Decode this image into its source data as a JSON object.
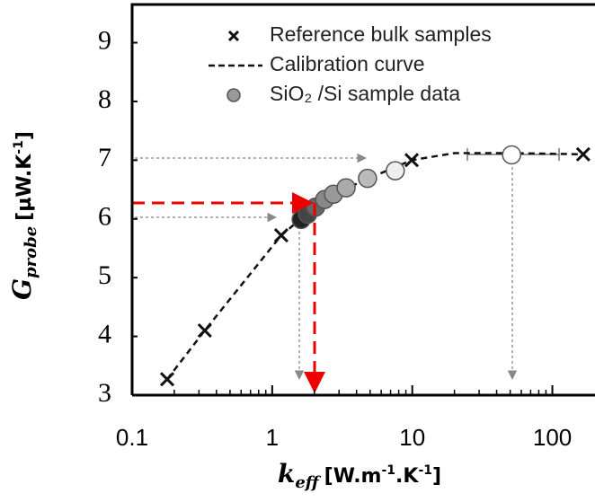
{
  "chart_data": {
    "type": "scatter",
    "xscale": "log",
    "xlim": [
      0.1,
      190
    ],
    "ylim": [
      3,
      9.65
    ],
    "xticks": [
      0.1,
      1,
      10,
      100
    ],
    "yticks": [
      3,
      4,
      5,
      6,
      7,
      8,
      9
    ],
    "y_label": {
      "symbol": "G",
      "subscript": "probe",
      "unit": "[µW.K",
      "unit_exponent": "-1",
      "unit_end": "]"
    },
    "x_label": {
      "symbol": "k",
      "subscript": "eff",
      "unit": "[W.m",
      "exp1": "-1",
      "mid": ".K",
      "exp2": "-1",
      "unit_end": "]"
    },
    "series": [
      {
        "name": "Reference bulk samples",
        "marker": "x",
        "color": "#111111",
        "x": [
          0.178,
          0.33,
          1.16,
          1.7,
          9.9,
          166
        ],
        "values": [
          3.27,
          4.1,
          5.72,
          6.05,
          7.0,
          7.1
        ]
      },
      {
        "name": "Calibration curve",
        "marker": "dashed-line",
        "color": "#111111",
        "x": [
          0.178,
          0.33,
          1.16,
          1.6,
          2.5,
          5,
          9.9,
          20,
          50,
          166
        ],
        "values": [
          3.27,
          4.1,
          5.72,
          6.0,
          6.38,
          6.7,
          7.0,
          7.12,
          7.12,
          7.1
        ]
      },
      {
        "name": "SiO₂ /Si sample data",
        "marker": "circle",
        "color": "#999999",
        "colors": [
          "#222222",
          "#444444",
          "#666666",
          "#888888",
          "#999999",
          "#aaaaaa",
          "#bbbbbb",
          "#eeeeee",
          "#ffffff"
        ],
        "x": [
          1.61,
          1.79,
          2.04,
          2.37,
          2.74,
          3.37,
          4.79,
          7.56,
          51.2
        ],
        "values": [
          5.99,
          6.08,
          6.2,
          6.33,
          6.42,
          6.53,
          6.69,
          6.82,
          7.09
        ]
      }
    ]
  }
}
